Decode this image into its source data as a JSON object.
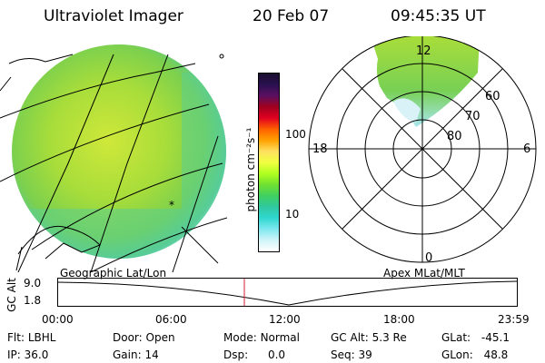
{
  "header": {
    "instrument": "Ultraviolet Imager",
    "date": "20 Feb 07",
    "time": "09:45:35 UT"
  },
  "colorbar": {
    "unit_label": "photon cm⁻²s⁻¹",
    "ticks": [
      "100",
      "10"
    ],
    "colors": [
      "#1a1030",
      "#2a1050",
      "#5a1060",
      "#a00020",
      "#e00020",
      "#ff6000",
      "#ffa000",
      "#ffe060",
      "#f0ff40",
      "#b0ff20",
      "#70e030",
      "#40d060",
      "#30c8a0",
      "#30d8d0",
      "#80e8f0",
      "#d0f4f8",
      "#ffffff"
    ]
  },
  "polar_plot": {
    "mlt_labels": [
      "12",
      "6",
      "0",
      "18"
    ],
    "lat_labels": [
      "60",
      "70",
      "80"
    ]
  },
  "map": {
    "caption": "Geographic Lat/Lon",
    "marker": "*"
  },
  "apex_caption": "Apex MLat/MLT",
  "timeline": {
    "ylabel": "GC Alt",
    "y_ticks": [
      "9.0",
      "1.8"
    ],
    "x_ticks": [
      "00:00",
      "06:00",
      "12:00",
      "18:00",
      "23:59"
    ],
    "marker_time": "09:45"
  },
  "status": {
    "flt_label": "Flt:",
    "flt_value": "LBHL",
    "ip_label": "IP:",
    "ip_value": "36.0",
    "door_label": "Door:",
    "door_value": "Open",
    "gain_label": "Gain:",
    "gain_value": "14",
    "mode_label": "Mode:",
    "mode_value": "Normal",
    "dsp_label": "Dsp:",
    "dsp_value": "0.0",
    "gcalt_label": "GC Alt:",
    "gcalt_value": "5.3 Re",
    "seq_label": "Seq:",
    "seq_value": "39",
    "glat_label": "GLat:",
    "glat_value": "-45.1",
    "glon_label": "GLon:",
    "glon_value": "48.8"
  }
}
